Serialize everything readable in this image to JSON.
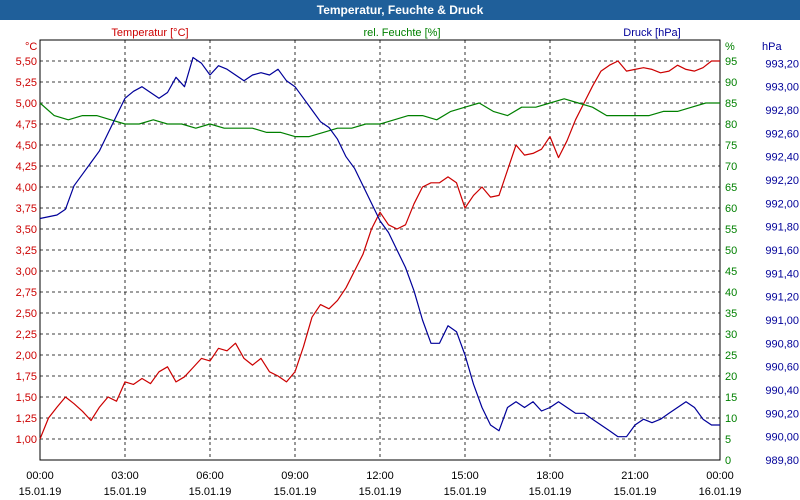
{
  "window": {
    "title": "Temperatur, Feuchte & Druck"
  },
  "chart_data": {
    "type": "line",
    "x_ticks": [
      {
        "time": "00:00",
        "date": "15.01.19"
      },
      {
        "time": "03:00",
        "date": "15.01.19"
      },
      {
        "time": "06:00",
        "date": "15.01.19"
      },
      {
        "time": "09:00",
        "date": "15.01.19"
      },
      {
        "time": "12:00",
        "date": "15.01.19"
      },
      {
        "time": "15:00",
        "date": "15.01.19"
      },
      {
        "time": "18:00",
        "date": "15.01.19"
      },
      {
        "time": "21:00",
        "date": "15.01.19"
      },
      {
        "time": "00:00",
        "date": "16.01.19"
      }
    ],
    "xlim": [
      0,
      24
    ],
    "grid": true,
    "axes": {
      "temp": {
        "unit": "°C",
        "lim": [
          0.75,
          5.75
        ],
        "step": 0.25,
        "decimals": 2,
        "color": "#cc0000"
      },
      "hum": {
        "unit": "%",
        "lim": [
          0,
          100
        ],
        "step": 5,
        "decimals": 0,
        "color": "#008000"
      },
      "pres": {
        "unit": "hPa",
        "lim": [
          989.8,
          993.4
        ],
        "step": 0.2,
        "decimals": 2,
        "color": "#000099"
      }
    },
    "series": [
      {
        "name": "Temperatur [°C]",
        "axis": "temp",
        "color": "#cc0000",
        "points": [
          [
            0,
            1.0
          ],
          [
            0.3,
            1.25
          ],
          [
            0.6,
            1.38
          ],
          [
            0.9,
            1.5
          ],
          [
            1.2,
            1.42
          ],
          [
            1.5,
            1.33
          ],
          [
            1.8,
            1.22
          ],
          [
            2.1,
            1.38
          ],
          [
            2.4,
            1.5
          ],
          [
            2.7,
            1.45
          ],
          [
            3.0,
            1.68
          ],
          [
            3.3,
            1.65
          ],
          [
            3.6,
            1.72
          ],
          [
            3.9,
            1.66
          ],
          [
            4.2,
            1.8
          ],
          [
            4.5,
            1.86
          ],
          [
            4.8,
            1.68
          ],
          [
            5.1,
            1.74
          ],
          [
            5.4,
            1.85
          ],
          [
            5.7,
            1.96
          ],
          [
            6.0,
            1.93
          ],
          [
            6.3,
            2.08
          ],
          [
            6.6,
            2.05
          ],
          [
            6.9,
            2.14
          ],
          [
            7.2,
            1.96
          ],
          [
            7.5,
            1.88
          ],
          [
            7.8,
            1.96
          ],
          [
            8.1,
            1.8
          ],
          [
            8.4,
            1.75
          ],
          [
            8.7,
            1.68
          ],
          [
            9.0,
            1.8
          ],
          [
            9.3,
            2.1
          ],
          [
            9.6,
            2.45
          ],
          [
            9.9,
            2.6
          ],
          [
            10.2,
            2.55
          ],
          [
            10.5,
            2.65
          ],
          [
            10.8,
            2.8
          ],
          [
            11.1,
            3.0
          ],
          [
            11.4,
            3.2
          ],
          [
            11.7,
            3.5
          ],
          [
            12.0,
            3.7
          ],
          [
            12.3,
            3.55
          ],
          [
            12.6,
            3.5
          ],
          [
            12.9,
            3.55
          ],
          [
            13.2,
            3.8
          ],
          [
            13.5,
            4.0
          ],
          [
            13.8,
            4.05
          ],
          [
            14.1,
            4.05
          ],
          [
            14.4,
            4.12
          ],
          [
            14.7,
            4.05
          ],
          [
            15.0,
            3.75
          ],
          [
            15.3,
            3.9
          ],
          [
            15.6,
            4.0
          ],
          [
            15.9,
            3.88
          ],
          [
            16.2,
            3.9
          ],
          [
            16.5,
            4.2
          ],
          [
            16.8,
            4.5
          ],
          [
            17.1,
            4.38
          ],
          [
            17.4,
            4.4
          ],
          [
            17.7,
            4.45
          ],
          [
            18.0,
            4.6
          ],
          [
            18.3,
            4.35
          ],
          [
            18.6,
            4.55
          ],
          [
            18.9,
            4.8
          ],
          [
            19.2,
            5.0
          ],
          [
            19.5,
            5.2
          ],
          [
            19.8,
            5.38
          ],
          [
            20.1,
            5.45
          ],
          [
            20.4,
            5.5
          ],
          [
            20.7,
            5.38
          ],
          [
            21.0,
            5.4
          ],
          [
            21.3,
            5.42
          ],
          [
            21.6,
            5.4
          ],
          [
            21.9,
            5.36
          ],
          [
            22.2,
            5.38
          ],
          [
            22.5,
            5.45
          ],
          [
            22.8,
            5.4
          ],
          [
            23.1,
            5.38
          ],
          [
            23.4,
            5.42
          ],
          [
            23.7,
            5.5
          ],
          [
            24.0,
            5.5
          ]
        ]
      },
      {
        "name": "rel. Feuchte [%]",
        "axis": "hum",
        "color": "#008000",
        "points": [
          [
            0,
            85
          ],
          [
            0.5,
            82
          ],
          [
            1.0,
            81
          ],
          [
            1.5,
            82
          ],
          [
            2.0,
            82
          ],
          [
            2.5,
            81
          ],
          [
            3.0,
            80
          ],
          [
            3.5,
            80
          ],
          [
            4.0,
            81
          ],
          [
            4.5,
            80
          ],
          [
            5.0,
            80
          ],
          [
            5.5,
            79
          ],
          [
            6.0,
            80
          ],
          [
            6.5,
            79
          ],
          [
            7.0,
            79
          ],
          [
            7.5,
            79
          ],
          [
            8.0,
            78
          ],
          [
            8.5,
            78
          ],
          [
            9.0,
            77
          ],
          [
            9.5,
            77
          ],
          [
            10.0,
            78
          ],
          [
            10.5,
            79
          ],
          [
            11.0,
            79
          ],
          [
            11.5,
            80
          ],
          [
            12.0,
            80
          ],
          [
            12.5,
            81
          ],
          [
            13.0,
            82
          ],
          [
            13.5,
            82
          ],
          [
            14.0,
            81
          ],
          [
            14.5,
            83
          ],
          [
            15.0,
            84
          ],
          [
            15.5,
            85
          ],
          [
            16.0,
            83
          ],
          [
            16.5,
            82
          ],
          [
            17.0,
            84
          ],
          [
            17.5,
            84
          ],
          [
            18.0,
            85
          ],
          [
            18.5,
            86
          ],
          [
            19.0,
            85
          ],
          [
            19.5,
            84
          ],
          [
            20.0,
            82
          ],
          [
            20.5,
            82
          ],
          [
            21.0,
            82
          ],
          [
            21.5,
            82
          ],
          [
            22.0,
            83
          ],
          [
            22.5,
            83
          ],
          [
            23.0,
            84
          ],
          [
            23.5,
            85
          ],
          [
            24.0,
            85
          ]
        ]
      },
      {
        "name": "Druck [hPa]",
        "axis": "pres",
        "color": "#000099",
        "points": [
          [
            0,
            991.87
          ],
          [
            0.6,
            991.9
          ],
          [
            0.9,
            991.95
          ],
          [
            1.2,
            992.15
          ],
          [
            1.5,
            992.25
          ],
          [
            1.8,
            992.35
          ],
          [
            2.1,
            992.45
          ],
          [
            2.4,
            992.6
          ],
          [
            2.7,
            992.75
          ],
          [
            3.0,
            992.9
          ],
          [
            3.3,
            992.96
          ],
          [
            3.6,
            993.0
          ],
          [
            3.9,
            992.95
          ],
          [
            4.2,
            992.9
          ],
          [
            4.5,
            992.95
          ],
          [
            4.8,
            993.08
          ],
          [
            5.1,
            993.0
          ],
          [
            5.4,
            993.25
          ],
          [
            5.7,
            993.2
          ],
          [
            6.0,
            993.1
          ],
          [
            6.3,
            993.18
          ],
          [
            6.6,
            993.15
          ],
          [
            6.9,
            993.1
          ],
          [
            7.2,
            993.05
          ],
          [
            7.5,
            993.1
          ],
          [
            7.8,
            993.12
          ],
          [
            8.1,
            993.1
          ],
          [
            8.4,
            993.15
          ],
          [
            8.7,
            993.05
          ],
          [
            9.0,
            993.0
          ],
          [
            9.3,
            992.9
          ],
          [
            9.6,
            992.8
          ],
          [
            9.9,
            992.7
          ],
          [
            10.2,
            992.65
          ],
          [
            10.5,
            992.55
          ],
          [
            10.8,
            992.4
          ],
          [
            11.1,
            992.3
          ],
          [
            11.4,
            992.15
          ],
          [
            11.7,
            992.0
          ],
          [
            12.0,
            991.85
          ],
          [
            12.3,
            991.75
          ],
          [
            12.6,
            991.6
          ],
          [
            12.9,
            991.45
          ],
          [
            13.2,
            991.25
          ],
          [
            13.5,
            991.0
          ],
          [
            13.8,
            990.8
          ],
          [
            14.1,
            990.8
          ],
          [
            14.4,
            990.95
          ],
          [
            14.7,
            990.9
          ],
          [
            15.0,
            990.7
          ],
          [
            15.3,
            990.45
          ],
          [
            15.6,
            990.25
          ],
          [
            15.9,
            990.1
          ],
          [
            16.2,
            990.05
          ],
          [
            16.5,
            990.25
          ],
          [
            16.8,
            990.3
          ],
          [
            17.1,
            990.25
          ],
          [
            17.4,
            990.3
          ],
          [
            17.7,
            990.22
          ],
          [
            18.0,
            990.25
          ],
          [
            18.3,
            990.3
          ],
          [
            18.6,
            990.25
          ],
          [
            18.9,
            990.2
          ],
          [
            19.2,
            990.2
          ],
          [
            19.5,
            990.15
          ],
          [
            19.8,
            990.1
          ],
          [
            20.1,
            990.05
          ],
          [
            20.4,
            990.0
          ],
          [
            20.7,
            990.0
          ],
          [
            21.0,
            990.1
          ],
          [
            21.3,
            990.15
          ],
          [
            21.6,
            990.12
          ],
          [
            21.9,
            990.15
          ],
          [
            22.2,
            990.2
          ],
          [
            22.5,
            990.25
          ],
          [
            22.8,
            990.3
          ],
          [
            23.1,
            990.25
          ],
          [
            23.4,
            990.15
          ],
          [
            23.7,
            990.1
          ],
          [
            24.0,
            990.1
          ]
        ]
      }
    ]
  }
}
